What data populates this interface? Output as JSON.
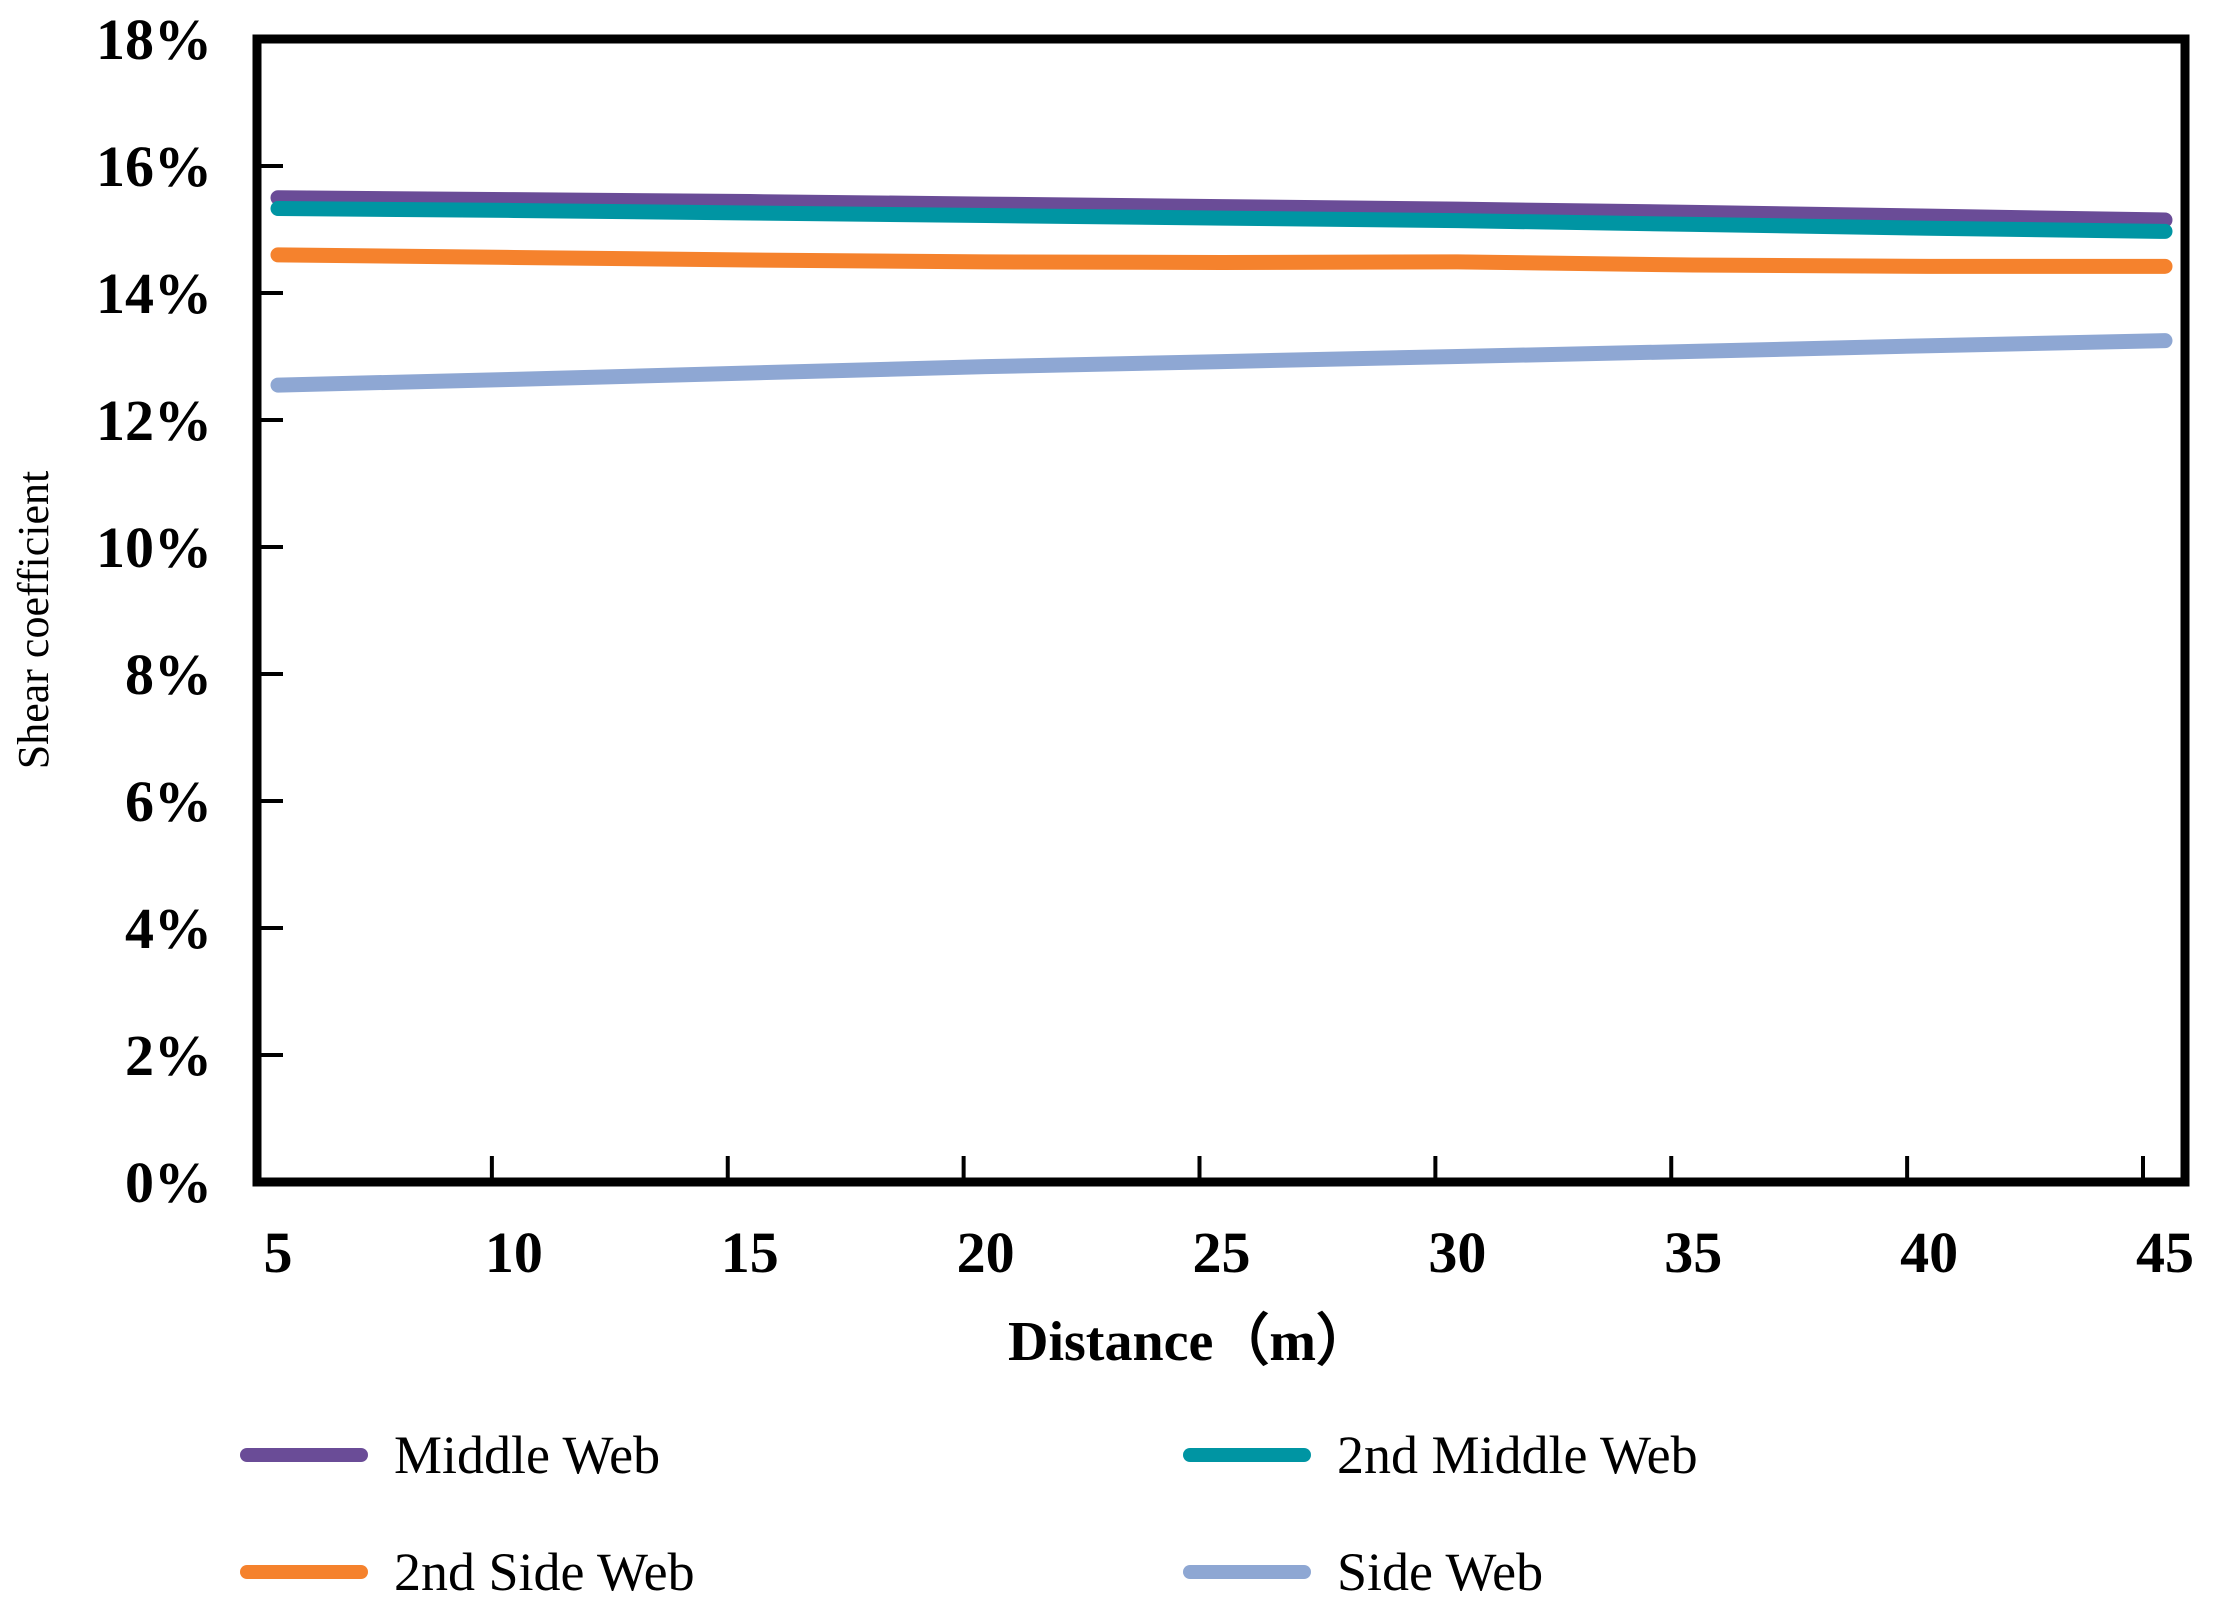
{
  "figure": {
    "ylabel": "Shear coefficient",
    "xlabel": "Distance（m）"
  },
  "chart_data": {
    "type": "line",
    "title": "",
    "xlabel": "Distance（m）",
    "ylabel": "Shear coefficient",
    "x": [
      5,
      10,
      15,
      20,
      25,
      30,
      35,
      40,
      45
    ],
    "x_tick_labels": [
      "5",
      "10",
      "15",
      "20",
      "25",
      "30",
      "35",
      "40",
      "45"
    ],
    "y_tick_labels": [
      "0%",
      "2%",
      "4%",
      "6%",
      "8%",
      "10%",
      "12%",
      "14%",
      "16%",
      "18%"
    ],
    "y_tick_values_percent": [
      0,
      2,
      4,
      6,
      8,
      10,
      12,
      14,
      16,
      18
    ],
    "ylim_percent": [
      0,
      18
    ],
    "grid": false,
    "legend_position": "bottom-two-columns",
    "axis_color": "#000000",
    "series": [
      {
        "name": "Middle Web",
        "color": "#6a4c97",
        "values_percent": [
          15.5,
          15.47,
          15.44,
          15.4,
          15.36,
          15.32,
          15.27,
          15.21,
          15.15
        ]
      },
      {
        "name": "2nd Middle Web",
        "color": "#0095a3",
        "values_percent": [
          15.33,
          15.3,
          15.26,
          15.22,
          15.18,
          15.14,
          15.08,
          15.02,
          14.97
        ]
      },
      {
        "name": "2nd Side Web",
        "color": "#f5822d",
        "values_percent": [
          14.6,
          14.56,
          14.52,
          14.49,
          14.48,
          14.49,
          14.44,
          14.42,
          14.42
        ]
      },
      {
        "name": "Side Web",
        "color": "#8ea7d3",
        "values_percent": [
          12.55,
          12.64,
          12.74,
          12.84,
          12.92,
          13.0,
          13.08,
          13.17,
          13.25
        ]
      }
    ],
    "legend_order_rows": [
      [
        "Middle Web",
        "2nd Middle Web"
      ],
      [
        "2nd Side Web",
        "Side Web"
      ]
    ]
  }
}
